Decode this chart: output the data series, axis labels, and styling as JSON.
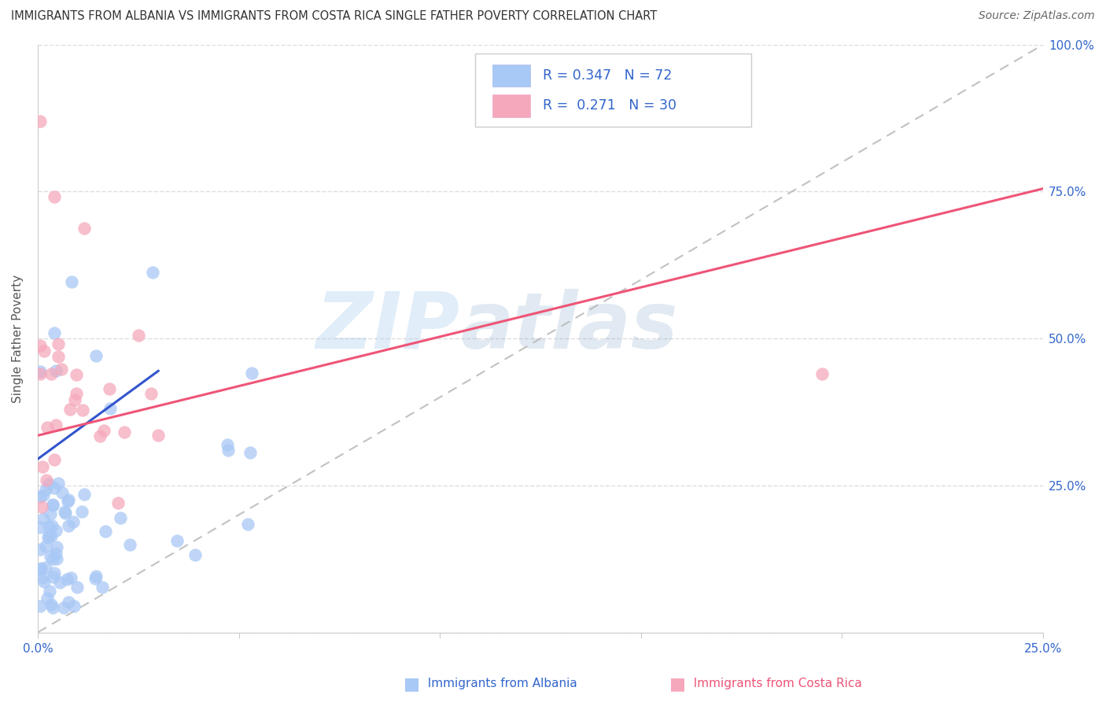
{
  "title": "IMMIGRANTS FROM ALBANIA VS IMMIGRANTS FROM COSTA RICA SINGLE FATHER POVERTY CORRELATION CHART",
  "source": "Source: ZipAtlas.com",
  "ylabel": "Single Father Poverty",
  "watermark_zip": "ZIP",
  "watermark_atlas": "atlas",
  "albania_R": 0.347,
  "albania_N": 72,
  "costarica_R": 0.271,
  "costarica_N": 30,
  "albania_color": "#a8c8f5",
  "costarica_color": "#f5a8bb",
  "albania_line_color": "#3355cc",
  "costarica_line_color": "#ee5577",
  "ref_line_color": "#bbbbbb",
  "xlim": [
    0,
    0.25
  ],
  "ylim": [
    0,
    1.0
  ],
  "x_ticks": [
    0,
    0.05,
    0.1,
    0.15,
    0.2,
    0.25
  ],
  "x_tick_labels": [
    "0.0%",
    "",
    "",
    "",
    "",
    "25.0%"
  ],
  "y_ticks": [
    0.0,
    0.25,
    0.5,
    0.75,
    1.0
  ],
  "y_tick_labels": [
    "",
    "25.0%",
    "50.0%",
    "75.0%",
    "100.0%"
  ],
  "legend_albania": "R = 0.347   N = 72",
  "legend_cr": "R =  0.271   N = 30",
  "bottom_legend_albania": "Immigrants from Albania",
  "bottom_legend_cr": "Immigrants from Costa Rica"
}
